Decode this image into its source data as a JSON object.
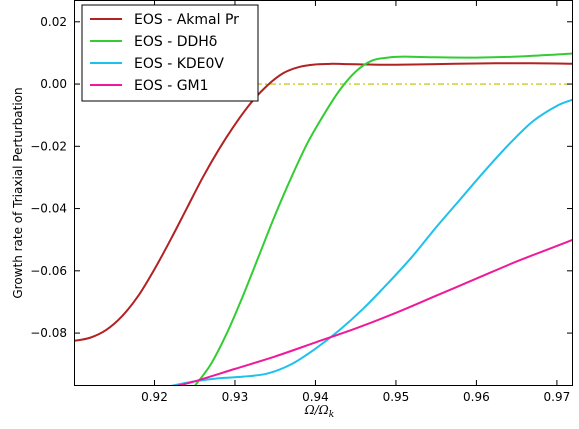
{
  "chart_data": {
    "type": "line",
    "title": "",
    "xlabel": "Ω/Ω_k",
    "xlabel_main": "Ω/Ω",
    "xlabel_sub": "k",
    "ylabel": "Growth rate of Triaxial Perturbation",
    "xlim": [
      0.91,
      0.972
    ],
    "ylim": [
      -0.097,
      0.027
    ],
    "xticks": [
      "0.92",
      "0.93",
      "0.94",
      "0.95",
      "0.96",
      "0.97"
    ],
    "xtick_values": [
      0.92,
      0.93,
      0.94,
      0.95,
      0.96,
      0.97
    ],
    "yticks": [
      "0.02",
      "0.00",
      "−0.02",
      "−0.04",
      "−0.06",
      "−0.08"
    ],
    "ytick_values": [
      0.02,
      0.0,
      -0.02,
      -0.04,
      -0.06,
      -0.08
    ],
    "grid": false,
    "legend_position": "top-left",
    "reference_line": {
      "y": 0.0,
      "color": "#bfbf00",
      "style": "dash-dot"
    },
    "series": [
      {
        "name": "EOS - Akmal Pr",
        "color": "#b22222",
        "x": [
          0.91,
          0.912,
          0.914,
          0.916,
          0.918,
          0.92,
          0.922,
          0.924,
          0.926,
          0.928,
          0.93,
          0.932,
          0.934,
          0.936,
          0.938,
          0.94,
          0.942,
          0.944,
          0.946,
          0.948,
          0.95,
          0.955,
          0.96,
          0.965,
          0.97,
          0.972
        ],
        "y": [
          -0.0825,
          -0.0815,
          -0.079,
          -0.0745,
          -0.068,
          -0.0595,
          -0.05,
          -0.04,
          -0.03,
          -0.021,
          -0.013,
          -0.006,
          -0.0005,
          0.0035,
          0.0055,
          0.0063,
          0.0065,
          0.0064,
          0.0063,
          0.0062,
          0.0062,
          0.0064,
          0.0066,
          0.0067,
          0.0066,
          0.0065
        ]
      },
      {
        "name": "EOS - DDHδ",
        "color": "#33cc33",
        "x": [
          0.925,
          0.927,
          0.929,
          0.931,
          0.933,
          0.935,
          0.937,
          0.939,
          0.941,
          0.943,
          0.945,
          0.947,
          0.949,
          0.951,
          0.955,
          0.96,
          0.965,
          0.97,
          0.972
        ],
        "y": [
          -0.097,
          -0.09,
          -0.08,
          -0.068,
          -0.055,
          -0.042,
          -0.03,
          -0.019,
          -0.01,
          -0.002,
          0.004,
          0.0075,
          0.0085,
          0.0088,
          0.0086,
          0.0085,
          0.0088,
          0.0095,
          0.0098
        ]
      },
      {
        "name": "EOS - KDE0V",
        "color": "#1ec0ee",
        "x": [
          0.922,
          0.925,
          0.928,
          0.931,
          0.934,
          0.937,
          0.94,
          0.943,
          0.946,
          0.949,
          0.952,
          0.955,
          0.958,
          0.961,
          0.964,
          0.967,
          0.97,
          0.972
        ],
        "y": [
          -0.097,
          -0.0955,
          -0.0945,
          -0.094,
          -0.093,
          -0.09,
          -0.085,
          -0.079,
          -0.072,
          -0.064,
          -0.0555,
          -0.046,
          -0.037,
          -0.028,
          -0.0195,
          -0.012,
          -0.007,
          -0.005
        ]
      },
      {
        "name": "EOS - GM1",
        "color": "#ee1a99",
        "x": [
          0.922,
          0.925,
          0.93,
          0.935,
          0.94,
          0.945,
          0.95,
          0.955,
          0.96,
          0.965,
          0.97,
          0.972
        ],
        "y": [
          -0.0975,
          -0.0955,
          -0.0915,
          -0.0875,
          -0.083,
          -0.0785,
          -0.0735,
          -0.068,
          -0.0625,
          -0.057,
          -0.052,
          -0.05
        ]
      }
    ]
  }
}
